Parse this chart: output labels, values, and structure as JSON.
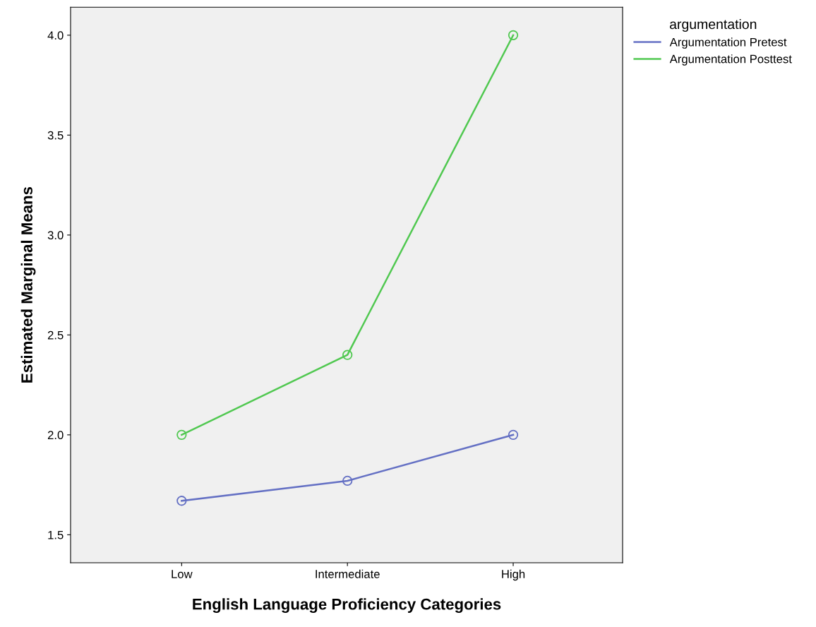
{
  "chart_data": {
    "type": "line",
    "xlabel": "English Language Proficiency Categories",
    "ylabel": "Estimated Marginal Means",
    "legend_title": "argumentation",
    "categories": [
      "Low",
      "Intermediate",
      "High"
    ],
    "series": [
      {
        "name": "Argumentation Pretest",
        "color": "#6470c4",
        "values": [
          1.67,
          1.77,
          2.0
        ]
      },
      {
        "name": "Argumentation Posttest",
        "color": "#50c850",
        "values": [
          2.0,
          2.4,
          4.0
        ]
      }
    ],
    "ylim": [
      1.36,
      4.14
    ],
    "yticks": [
      {
        "value": 1.5,
        "label": "1.5"
      },
      {
        "value": 2.0,
        "label": "2.0"
      },
      {
        "value": 2.5,
        "label": "2.5"
      },
      {
        "value": 3.0,
        "label": "3.0"
      },
      {
        "value": 3.5,
        "label": "3.5"
      },
      {
        "value": 4.0,
        "label": "4.0"
      }
    ],
    "marker": "circle",
    "line_style": "solid",
    "grid": false,
    "legend": "top right"
  }
}
